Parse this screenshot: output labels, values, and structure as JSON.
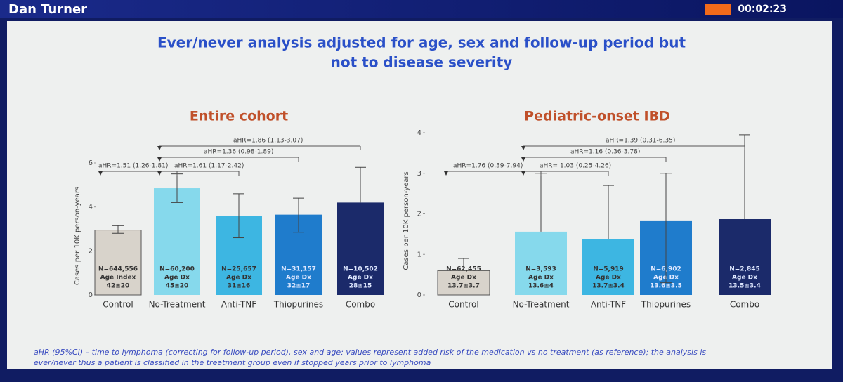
{
  "header": {
    "presenter": "Dan Turner",
    "timer": "00:02:23"
  },
  "slide": {
    "title_lines": [
      "Ever/never analysis adjusted for age, sex and follow-up period but",
      "not to disease severity"
    ],
    "footnote_lines": [
      "aHR (95%CI) – time to lymphoma (correcting for follow-up period), sex and age; values represent added risk of the medication vs no treatment (as reference); the analysis is",
      "ever/never thus a patient is classified in the treatment group even if stopped years prior to lymphoma"
    ]
  },
  "chart_data": [
    {
      "type": "bar",
      "title": "Entire cohort",
      "y_label": "Cases per 10K person-years",
      "categories": [
        "Control",
        "No-Treatment",
        "Anti-TNF",
        "Thiopurines",
        "Combo"
      ],
      "values": [
        2.95,
        4.85,
        3.6,
        3.65,
        4.2
      ],
      "ci_low": [
        2.8,
        4.2,
        2.6,
        2.85,
        null
      ],
      "ci_high": [
        3.15,
        5.5,
        4.6,
        4.4,
        5.8
      ],
      "colors": [
        "#d8d3cb",
        "#86d9ec",
        "#3db6e2",
        "#1f7ccc",
        "#1b2a6a"
      ],
      "bar_notes": [
        [
          "N=644,556",
          "Age Index",
          "42±20"
        ],
        [
          "N=60,200",
          "Age Dx",
          "45±20"
        ],
        [
          "N=25,657",
          "Age Dx",
          "31±16"
        ],
        [
          "N=31,157",
          "Age Dx",
          "32±17"
        ],
        [
          "N=10,502",
          "Age Dx",
          "28±15"
        ]
      ],
      "annotations": [
        "aHR=1.51 (1.26-1.81)",
        "aHR=1.61 (1.17-2.42)",
        "aHR=1.36 (0.98-1.89)",
        "aHR=1.86 (1.13-3.07)"
      ],
      "ylim": [
        0,
        6
      ],
      "yticks": [
        0,
        2,
        4,
        6
      ]
    },
    {
      "type": "bar",
      "title": "Pediatric-onset IBD",
      "y_label": "Cases per 10K person-years",
      "categories": [
        "Control",
        "No-Treatment",
        "Anti-TNF",
        "Thiopurines",
        "Combo"
      ],
      "values": [
        0.6,
        1.56,
        1.37,
        1.82,
        1.87
      ],
      "ci_low": [
        null,
        null,
        null,
        0.3,
        null
      ],
      "ci_high": [
        0.9,
        3.0,
        2.7,
        3.0,
        3.95
      ],
      "colors": [
        "#d8d3cb",
        "#86d9ec",
        "#3db6e2",
        "#1f7ccc",
        "#1b2a6a"
      ],
      "bar_notes": [
        [
          "N=62,455",
          "Age Dx",
          "13.7±3.7"
        ],
        [
          "N=3,593",
          "Age Dx",
          "13.6±4"
        ],
        [
          "N=5,919",
          "Age Dx",
          "13.7±3.4"
        ],
        [
          "N=6,902",
          "Age Dx",
          "13.6±3.5"
        ],
        [
          "N=2,845",
          "Age Dx",
          "13.5±3.4"
        ]
      ],
      "annotations": [
        "aHR=1.76 (0.39-7.94)",
        "aHR= 1.03 (0.25-4.26)",
        "aHR=1.16 (0.36-3.78)",
        "aHR=1.39 (0.31-6.35)"
      ],
      "ylim": [
        0,
        4
      ],
      "yticks": [
        0,
        1,
        2,
        3,
        4
      ]
    }
  ]
}
